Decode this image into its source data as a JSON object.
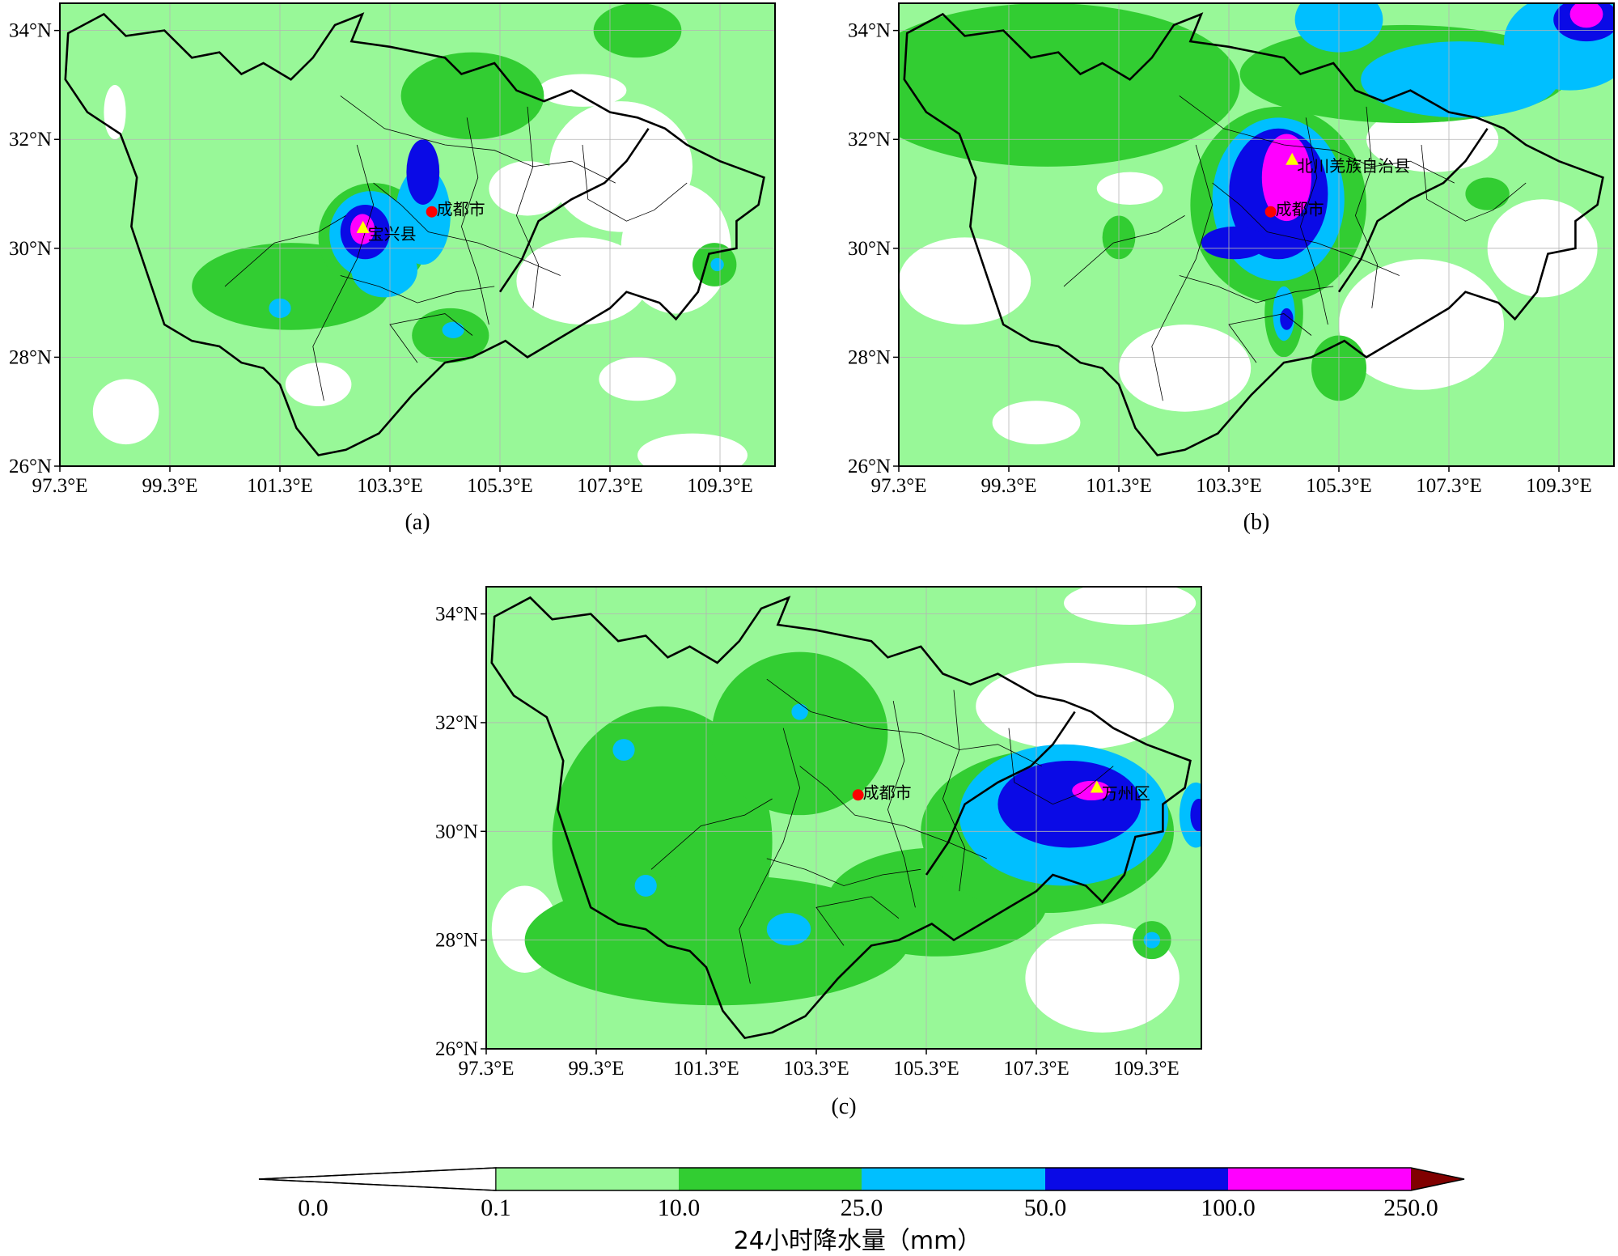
{
  "colors": {
    "c0": "#ffffff",
    "c1": "#98f898",
    "c2": "#32cd32",
    "c3": "#00bfff",
    "c4": "#0a0ae6",
    "c5": "#ff00ff",
    "c6": "#800000"
  },
  "axes": {
    "lon_min": 97.3,
    "lon_max": 110.3,
    "lat_min": 26,
    "lat_max": 34.5,
    "x_ticks": [
      "97.3°E",
      "99.3°E",
      "101.3°E",
      "103.3°E",
      "105.3°E",
      "107.3°E",
      "109.3°E"
    ],
    "x_tick_values": [
      97.3,
      99.3,
      101.3,
      103.3,
      105.3,
      107.3,
      109.3
    ],
    "y_ticks": [
      "26°N",
      "28°N",
      "30°N",
      "32°N",
      "34°N"
    ],
    "y_tick_values": [
      26,
      28,
      30,
      32,
      34
    ]
  },
  "chart_data": [
    {
      "type": "map-contour",
      "caption": "(a)",
      "city": {
        "name": "成都市",
        "lon": 104.06,
        "lat": 30.67
      },
      "station": {
        "name": "宝兴县",
        "lon": 102.81,
        "lat": 30.37
      },
      "blobs": [
        {
          "lon": 101.5,
          "lat": 29.3,
          "rx": 1.8,
          "ry": 0.8,
          "level": 2
        },
        {
          "lon": 101.3,
          "lat": 28.9,
          "rx": 0.2,
          "ry": 0.18,
          "level": 3
        },
        {
          "lon": 103.0,
          "lat": 30.2,
          "rx": 1.0,
          "ry": 1.0,
          "level": 2
        },
        {
          "lon": 102.95,
          "lat": 30.25,
          "rx": 0.75,
          "ry": 0.8,
          "level": 3
        },
        {
          "lon": 102.85,
          "lat": 30.3,
          "rx": 0.45,
          "ry": 0.5,
          "level": 4
        },
        {
          "lon": 102.8,
          "lat": 30.35,
          "rx": 0.22,
          "ry": 0.28,
          "level": 5
        },
        {
          "lon": 103.9,
          "lat": 30.6,
          "rx": 0.5,
          "ry": 0.9,
          "level": 3
        },
        {
          "lon": 103.2,
          "lat": 29.6,
          "rx": 0.6,
          "ry": 0.5,
          "level": 3
        },
        {
          "lon": 103.9,
          "lat": 31.4,
          "rx": 0.3,
          "ry": 0.6,
          "level": 4
        },
        {
          "lon": 104.4,
          "lat": 28.4,
          "rx": 0.7,
          "ry": 0.5,
          "level": 2
        },
        {
          "lon": 104.45,
          "lat": 28.5,
          "rx": 0.2,
          "ry": 0.15,
          "level": 3
        },
        {
          "lon": 109.2,
          "lat": 29.7,
          "rx": 0.4,
          "ry": 0.4,
          "level": 2
        },
        {
          "lon": 109.25,
          "lat": 29.7,
          "rx": 0.12,
          "ry": 0.12,
          "level": 3
        },
        {
          "lon": 104.8,
          "lat": 32.8,
          "rx": 1.3,
          "ry": 0.8,
          "level": 2
        },
        {
          "lon": 107.8,
          "lat": 34.0,
          "rx": 0.8,
          "ry": 0.5,
          "level": 2
        }
      ],
      "clears": [
        {
          "lon": 98.5,
          "lat": 27.0,
          "rx": 0.6,
          "ry": 0.6
        },
        {
          "lon": 106.8,
          "lat": 29.4,
          "rx": 1.2,
          "ry": 0.8
        },
        {
          "lon": 108.5,
          "lat": 30.0,
          "rx": 1.0,
          "ry": 1.2
        },
        {
          "lon": 107.5,
          "lat": 31.5,
          "rx": 1.3,
          "ry": 1.2
        },
        {
          "lon": 105.8,
          "lat": 31.1,
          "rx": 0.7,
          "ry": 0.5
        },
        {
          "lon": 106.8,
          "lat": 32.9,
          "rx": 0.8,
          "ry": 0.3
        },
        {
          "lon": 98.3,
          "lat": 32.5,
          "rx": 0.2,
          "ry": 0.5
        },
        {
          "lon": 102.0,
          "lat": 27.5,
          "rx": 0.6,
          "ry": 0.4
        },
        {
          "lon": 107.8,
          "lat": 27.6,
          "rx": 0.7,
          "ry": 0.4
        },
        {
          "lon": 108.8,
          "lat": 26.2,
          "rx": 1.0,
          "ry": 0.4
        }
      ]
    },
    {
      "type": "map-contour",
      "caption": "(b)",
      "city": {
        "name": "成都市",
        "lon": 104.06,
        "lat": 30.67
      },
      "station": {
        "name": "北川羌族自治县",
        "lon": 104.45,
        "lat": 31.62
      },
      "blobs": [
        {
          "lon": 100.0,
          "lat": 33.0,
          "rx": 3.5,
          "ry": 1.5,
          "level": 2
        },
        {
          "lon": 104.2,
          "lat": 30.8,
          "rx": 1.6,
          "ry": 1.8,
          "level": 2
        },
        {
          "lon": 104.2,
          "lat": 30.9,
          "rx": 1.2,
          "ry": 1.5,
          "level": 3
        },
        {
          "lon": 104.2,
          "lat": 31.0,
          "rx": 0.9,
          "ry": 1.2,
          "level": 4
        },
        {
          "lon": 104.35,
          "lat": 31.3,
          "rx": 0.45,
          "ry": 0.8,
          "level": 5
        },
        {
          "lon": 103.4,
          "lat": 30.1,
          "rx": 0.6,
          "ry": 0.3,
          "level": 4
        },
        {
          "lon": 104.3,
          "lat": 28.8,
          "rx": 0.35,
          "ry": 0.8,
          "level": 2
        },
        {
          "lon": 104.3,
          "lat": 28.8,
          "rx": 0.2,
          "ry": 0.5,
          "level": 3
        },
        {
          "lon": 104.35,
          "lat": 28.7,
          "rx": 0.12,
          "ry": 0.2,
          "level": 4
        },
        {
          "lon": 106.5,
          "lat": 33.2,
          "rx": 3.0,
          "ry": 0.9,
          "level": 2
        },
        {
          "lon": 107.5,
          "lat": 33.1,
          "rx": 1.8,
          "ry": 0.7,
          "level": 3
        },
        {
          "lon": 105.3,
          "lat": 34.2,
          "rx": 0.8,
          "ry": 0.6,
          "level": 3
        },
        {
          "lon": 109.5,
          "lat": 33.8,
          "rx": 1.2,
          "ry": 0.9,
          "level": 3
        },
        {
          "lon": 109.8,
          "lat": 34.2,
          "rx": 0.6,
          "ry": 0.4,
          "level": 4
        },
        {
          "lon": 109.8,
          "lat": 34.3,
          "rx": 0.3,
          "ry": 0.25,
          "level": 5
        },
        {
          "lon": 101.3,
          "lat": 30.2,
          "rx": 0.3,
          "ry": 0.4,
          "level": 2
        },
        {
          "lon": 105.3,
          "lat": 27.8,
          "rx": 0.5,
          "ry": 0.6,
          "level": 2
        },
        {
          "lon": 108.0,
          "lat": 31.0,
          "rx": 0.4,
          "ry": 0.3,
          "level": 2
        }
      ],
      "clears": [
        {
          "lon": 98.5,
          "lat": 29.4,
          "rx": 1.2,
          "ry": 0.8
        },
        {
          "lon": 102.5,
          "lat": 27.8,
          "rx": 1.2,
          "ry": 0.8
        },
        {
          "lon": 106.8,
          "lat": 28.6,
          "rx": 1.5,
          "ry": 1.2
        },
        {
          "lon": 109.0,
          "lat": 30.0,
          "rx": 1.0,
          "ry": 0.9
        },
        {
          "lon": 107.0,
          "lat": 32.0,
          "rx": 1.2,
          "ry": 0.6
        },
        {
          "lon": 101.5,
          "lat": 31.1,
          "rx": 0.6,
          "ry": 0.3
        },
        {
          "lon": 99.8,
          "lat": 26.8,
          "rx": 0.8,
          "ry": 0.4
        }
      ]
    },
    {
      "type": "map-contour",
      "caption": "(c)",
      "city": {
        "name": "成都市",
        "lon": 104.06,
        "lat": 30.67
      },
      "station": {
        "name": "万州区",
        "lon": 108.4,
        "lat": 30.8
      },
      "blobs": [
        {
          "lon": 100.5,
          "lat": 29.8,
          "rx": 2.0,
          "ry": 2.5,
          "level": 2
        },
        {
          "lon": 101.5,
          "lat": 28.0,
          "rx": 3.5,
          "ry": 1.2,
          "level": 2
        },
        {
          "lon": 103.0,
          "lat": 31.8,
          "rx": 1.6,
          "ry": 1.5,
          "level": 2
        },
        {
          "lon": 105.5,
          "lat": 28.7,
          "rx": 2.0,
          "ry": 1.0,
          "level": 2
        },
        {
          "lon": 107.5,
          "lat": 30.0,
          "rx": 2.3,
          "ry": 1.5,
          "level": 2
        },
        {
          "lon": 107.8,
          "lat": 30.3,
          "rx": 1.9,
          "ry": 1.3,
          "level": 3
        },
        {
          "lon": 107.9,
          "lat": 30.5,
          "rx": 1.3,
          "ry": 0.8,
          "level": 4
        },
        {
          "lon": 108.3,
          "lat": 30.75,
          "rx": 0.35,
          "ry": 0.18,
          "level": 5
        },
        {
          "lon": 102.8,
          "lat": 28.2,
          "rx": 0.4,
          "ry": 0.3,
          "level": 3
        },
        {
          "lon": 100.2,
          "lat": 29.0,
          "rx": 0.2,
          "ry": 0.2,
          "level": 3
        },
        {
          "lon": 99.8,
          "lat": 31.5,
          "rx": 0.2,
          "ry": 0.2,
          "level": 3
        },
        {
          "lon": 103.0,
          "lat": 32.2,
          "rx": 0.15,
          "ry": 0.15,
          "level": 3
        },
        {
          "lon": 109.4,
          "lat": 28.0,
          "rx": 0.35,
          "ry": 0.35,
          "level": 2
        },
        {
          "lon": 109.4,
          "lat": 28.0,
          "rx": 0.15,
          "ry": 0.15,
          "level": 3
        },
        {
          "lon": 110.2,
          "lat": 30.3,
          "rx": 0.3,
          "ry": 0.6,
          "level": 3
        },
        {
          "lon": 110.25,
          "lat": 30.3,
          "rx": 0.15,
          "ry": 0.3,
          "level": 4
        }
      ],
      "clears": [
        {
          "lon": 108.5,
          "lat": 27.3,
          "rx": 1.4,
          "ry": 1.0
        },
        {
          "lon": 108.0,
          "lat": 32.3,
          "rx": 1.8,
          "ry": 0.8
        },
        {
          "lon": 98.0,
          "lat": 28.2,
          "rx": 0.6,
          "ry": 0.8
        },
        {
          "lon": 109.0,
          "lat": 34.2,
          "rx": 1.2,
          "ry": 0.4
        }
      ]
    }
  ],
  "colorbar": {
    "labels": [
      "0.0",
      "0.1",
      "10.0",
      "25.0",
      "50.0",
      "100.0",
      "250.0"
    ],
    "title": "24小时降水量（mm）"
  }
}
